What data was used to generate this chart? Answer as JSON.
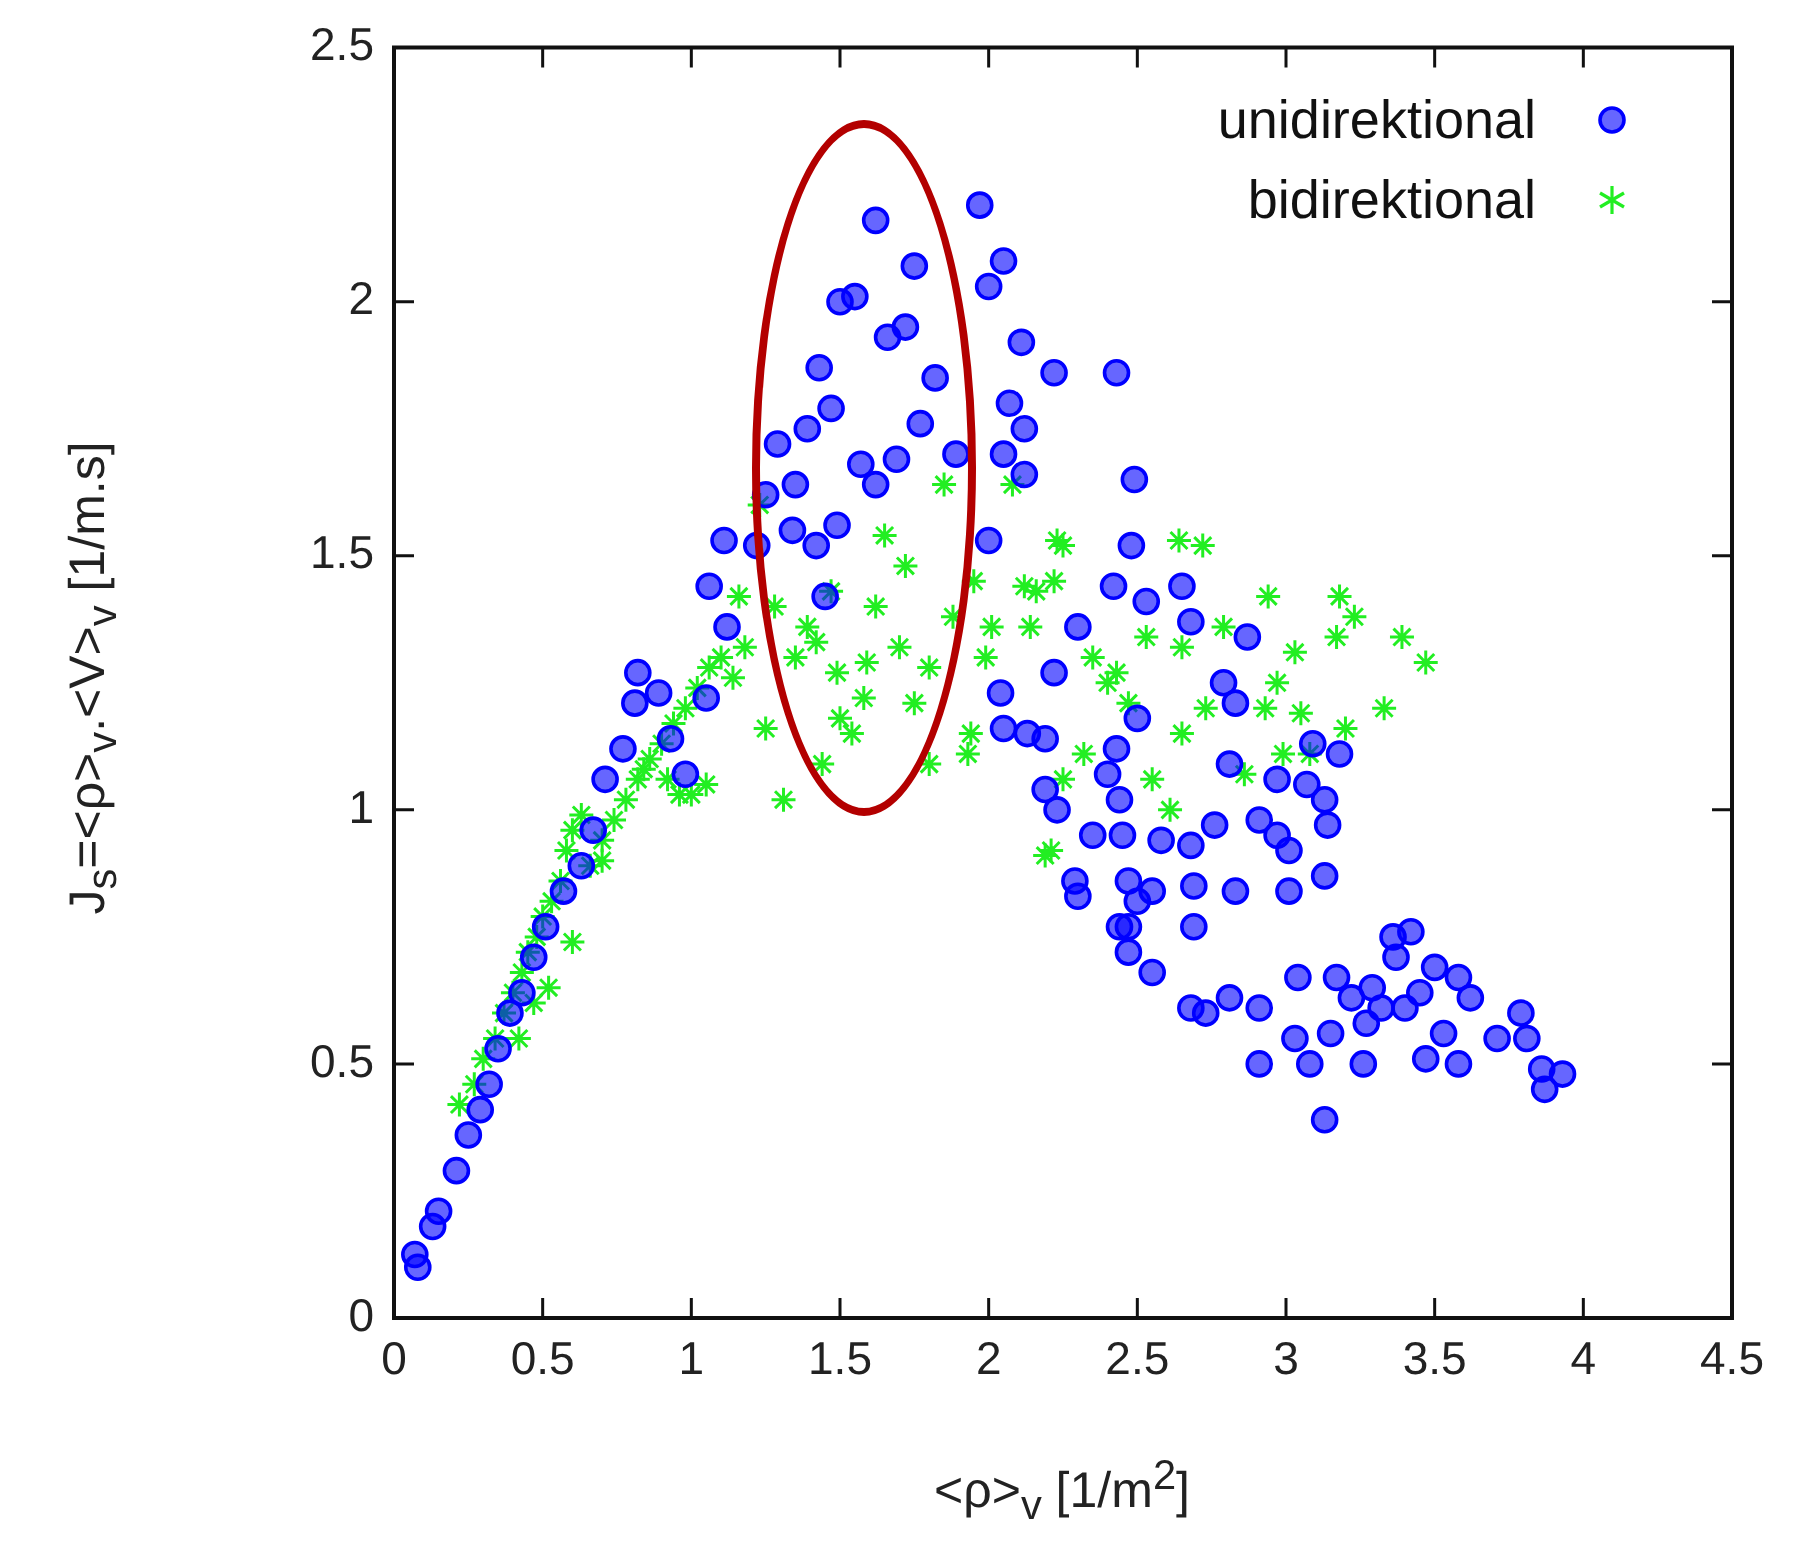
{
  "chart_data": {
    "type": "scatter",
    "xlabel": "<ρ>$_{v}$ [1/m$^{2}$]",
    "ylabel": "J$_{s}$=<ρ>$_{v}$.<V>$_{v}$  [1/m.s]",
    "xlim": [
      0,
      4.5
    ],
    "xticks": [
      0,
      0.5,
      1,
      1.5,
      2,
      2.5,
      3,
      3.5,
      4,
      4.5
    ],
    "ylim": [
      0,
      2.5
    ],
    "yticks": [
      0,
      0.5,
      1,
      1.5,
      2,
      2.5
    ],
    "grid": false,
    "legend": "top right",
    "series": [
      {
        "name": "unidirektional",
        "color": "#0000ff",
        "marker": "circle",
        "x": [
          0.07,
          0.08,
          0.13,
          0.15,
          0.21,
          0.25,
          0.29,
          0.32,
          0.35,
          0.39,
          0.43,
          0.47,
          0.51,
          0.57,
          0.63,
          0.67,
          0.71,
          0.77,
          0.81,
          0.82,
          0.89,
          0.93,
          0.98,
          1.05,
          1.12,
          1.06,
          1.11,
          1.22,
          1.25,
          1.29,
          1.35,
          1.39,
          1.43,
          1.47,
          1.5,
          1.55,
          1.62,
          1.66,
          1.72,
          1.75,
          1.82,
          1.77,
          1.69,
          1.62,
          1.57,
          1.49,
          1.42,
          1.34,
          1.45,
          1.89,
          1.97,
          2.05,
          2.0,
          2.11,
          2.22,
          2.07,
          2.12,
          2.05,
          2.12,
          2.43,
          2.49,
          2.48,
          2.0,
          2.42,
          2.53,
          2.65,
          2.68,
          2.87,
          2.3,
          2.22,
          2.04,
          2.05,
          2.13,
          2.19,
          2.79,
          2.83,
          3.09,
          3.18,
          2.81,
          2.97,
          3.07,
          3.13,
          3.14,
          2.97,
          3.01,
          3.13,
          3.01,
          2.83,
          2.69,
          2.55,
          2.5,
          2.47,
          2.44,
          2.47,
          2.55,
          2.69,
          2.3,
          2.29,
          2.35,
          2.19,
          2.23,
          2.44,
          2.45,
          2.43,
          2.5,
          2.58,
          2.68,
          2.76,
          2.91,
          2.4,
          2.47,
          2.68,
          2.73,
          2.81,
          2.91,
          2.91,
          3.04,
          3.03,
          3.08,
          3.13,
          3.17,
          3.15,
          3.26,
          3.29,
          3.36,
          3.42,
          3.37,
          3.4,
          3.47,
          3.5,
          3.45,
          3.58,
          3.58,
          3.62,
          3.71,
          3.79,
          3.81,
          3.86,
          3.87,
          3.93,
          3.27,
          3.32,
          3.53,
          3.22
        ],
        "values": [
          0.125,
          0.1,
          0.18,
          0.21,
          0.29,
          0.36,
          0.41,
          0.46,
          0.53,
          0.6,
          0.64,
          0.71,
          0.77,
          0.84,
          0.89,
          0.96,
          1.06,
          1.12,
          1.21,
          1.27,
          1.23,
          1.14,
          1.07,
          1.22,
          1.36,
          1.44,
          1.53,
          1.52,
          1.62,
          1.72,
          1.64,
          1.75,
          1.87,
          1.79,
          2.0,
          2.01,
          2.16,
          1.93,
          1.95,
          2.07,
          1.85,
          1.76,
          1.69,
          1.64,
          1.68,
          1.56,
          1.52,
          1.55,
          1.42,
          1.7,
          2.19,
          2.08,
          2.03,
          1.92,
          1.86,
          1.8,
          1.75,
          1.7,
          1.66,
          1.86,
          1.65,
          1.52,
          1.53,
          1.44,
          1.41,
          1.44,
          1.37,
          1.34,
          1.36,
          1.27,
          1.23,
          1.16,
          1.15,
          1.14,
          1.25,
          1.21,
          1.13,
          1.11,
          1.09,
          1.06,
          1.05,
          1.02,
          0.97,
          0.95,
          0.92,
          0.87,
          0.84,
          0.84,
          0.85,
          0.84,
          0.82,
          0.77,
          0.77,
          0.72,
          0.68,
          0.77,
          0.83,
          0.86,
          0.95,
          1.04,
          1.0,
          1.02,
          0.95,
          1.12,
          1.18,
          0.94,
          0.93,
          0.97,
          0.98,
          1.07,
          0.86,
          0.61,
          0.6,
          0.63,
          0.61,
          0.5,
          0.67,
          0.55,
          0.5,
          0.39,
          0.67,
          0.56,
          0.5,
          0.65,
          0.75,
          0.76,
          0.71,
          0.61,
          0.51,
          0.69,
          0.64,
          0.67,
          0.5,
          0.63,
          0.55,
          0.6,
          0.55,
          0.49,
          0.45,
          0.48,
          0.58,
          0.61,
          0.56,
          0.63
        ]
      },
      {
        "name": "bidirektional",
        "color": "#22ee22",
        "marker": "cross",
        "x": [
          0.22,
          0.27,
          0.3,
          0.34,
          0.37,
          0.4,
          0.43,
          0.45,
          0.48,
          0.5,
          0.53,
          0.56,
          0.58,
          0.6,
          0.63,
          0.66,
          0.7,
          0.74,
          0.78,
          0.82,
          0.86,
          0.9,
          0.94,
          0.98,
          1.02,
          1.06,
          1.1,
          1.14,
          1.18,
          0.84,
          0.92,
          0.96,
          1.0,
          1.05,
          0.6,
          0.7,
          0.52,
          0.47,
          0.42,
          1.31,
          1.25,
          1.47,
          1.65,
          1.85,
          1.54,
          1.44,
          1.8,
          1.93,
          1.75,
          1.59,
          1.39,
          1.72,
          1.95,
          2.08,
          2.01,
          2.16,
          2.23,
          2.21,
          1.16,
          1.23,
          1.49,
          2.25,
          2.64,
          2.72,
          2.94,
          3.18,
          3.23,
          3.17,
          3.39,
          3.47,
          3.33,
          3.2,
          3.05,
          2.97,
          3.03,
          2.93,
          2.99,
          3.08,
          2.86,
          2.35,
          2.4,
          2.47,
          2.65,
          2.73,
          2.55,
          2.61,
          2.25,
          2.19,
          2.12,
          2.22,
          2.79,
          2.14,
          1.99,
          1.94,
          2.32,
          2.65,
          2.53,
          2.43,
          1.62,
          1.7,
          1.8,
          1.5,
          1.35,
          1.42,
          1.58,
          1.88,
          1.28
        ],
        "values": [
          0.42,
          0.46,
          0.51,
          0.55,
          0.6,
          0.64,
          0.68,
          0.72,
          0.75,
          0.79,
          0.82,
          0.86,
          0.92,
          0.96,
          0.99,
          0.89,
          0.94,
          0.98,
          1.02,
          1.06,
          1.1,
          1.13,
          1.17,
          1.2,
          1.24,
          1.28,
          1.3,
          1.26,
          1.32,
          1.08,
          1.06,
          1.03,
          1.03,
          1.05,
          0.74,
          0.9,
          0.65,
          0.62,
          0.55,
          1.02,
          1.16,
          1.43,
          1.54,
          1.64,
          1.15,
          1.09,
          1.09,
          1.11,
          1.21,
          1.29,
          1.36,
          1.48,
          1.45,
          1.64,
          1.36,
          1.43,
          1.53,
          0.92,
          1.42,
          1.6,
          1.27,
          1.52,
          1.53,
          1.52,
          1.42,
          1.42,
          1.38,
          1.34,
          1.34,
          1.29,
          1.2,
          1.16,
          1.19,
          1.25,
          1.31,
          1.2,
          1.11,
          1.11,
          1.07,
          1.3,
          1.25,
          1.21,
          1.15,
          1.2,
          1.06,
          1.0,
          1.06,
          0.91,
          1.44,
          1.45,
          1.36,
          1.36,
          1.3,
          1.15,
          1.11,
          1.32,
          1.34,
          1.27,
          1.4,
          1.32,
          1.28,
          1.18,
          1.3,
          1.33,
          1.22,
          1.38,
          1.4
        ]
      }
    ]
  }
}
